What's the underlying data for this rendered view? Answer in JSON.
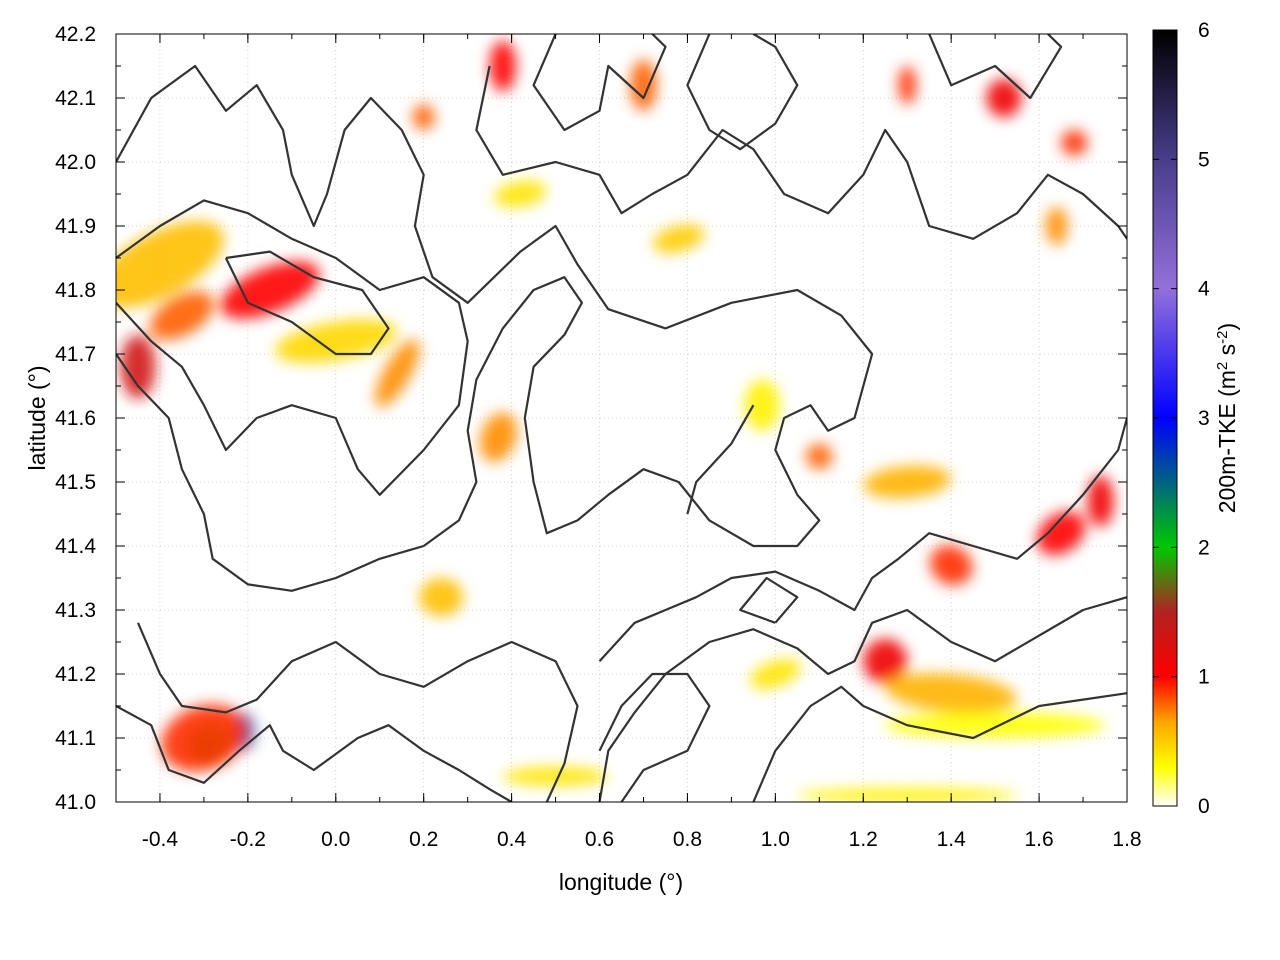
{
  "chart_data": {
    "type": "heatmap",
    "xlabel": "longitude (°)",
    "ylabel": "latitude (°)",
    "xlim": [
      -0.5,
      1.8
    ],
    "ylim": [
      41.0,
      42.2
    ],
    "x_ticks": [
      "-0.4",
      "-0.2",
      "0.0",
      "0.2",
      "0.4",
      "0.6",
      "0.8",
      "1.0",
      "1.2",
      "1.4",
      "1.6",
      "1.8"
    ],
    "x_tick_values": [
      -0.4,
      -0.2,
      0.0,
      0.2,
      0.4,
      0.6,
      0.8,
      1.0,
      1.2,
      1.4,
      1.6,
      1.8
    ],
    "y_ticks": [
      "41.0",
      "41.1",
      "41.2",
      "41.3",
      "41.4",
      "41.5",
      "41.6",
      "41.7",
      "41.8",
      "41.9",
      "42.0",
      "42.1",
      "42.2"
    ],
    "y_tick_values": [
      41.0,
      41.1,
      41.2,
      41.3,
      41.4,
      41.5,
      41.6,
      41.7,
      41.8,
      41.9,
      42.0,
      42.1,
      42.2
    ],
    "grid": true,
    "colorbar": {
      "label_main": "200m-TKE (m",
      "label_sup1": "2",
      "label_mid": " s",
      "label_sup2": "-2",
      "label_end": ")",
      "range": [
        0,
        6
      ],
      "ticks": [
        "0",
        "1",
        "2",
        "3",
        "4",
        "5",
        "6"
      ],
      "tick_values": [
        0,
        1,
        2,
        3,
        4,
        5,
        6
      ],
      "palette": [
        {
          "v": 0.0,
          "color": "#ffffff"
        },
        {
          "v": 0.3,
          "color": "#ffff00"
        },
        {
          "v": 0.65,
          "color": "#ffa500"
        },
        {
          "v": 1.0,
          "color": "#ff0000"
        },
        {
          "v": 1.5,
          "color": "#b22222"
        },
        {
          "v": 2.0,
          "color": "#00c800"
        },
        {
          "v": 3.0,
          "color": "#0000ff"
        },
        {
          "v": 4.0,
          "color": "#9370db"
        },
        {
          "v": 5.0,
          "color": "#483d8b"
        },
        {
          "v": 6.0,
          "color": "#000000"
        }
      ]
    },
    "tke_patches": [
      {
        "x": -0.4,
        "y": 41.84,
        "v": 0.55,
        "rx": 0.16,
        "ry": 0.05,
        "angle": -28
      },
      {
        "x": -0.15,
        "y": 41.8,
        "v": 1.0,
        "rx": 0.12,
        "ry": 0.035,
        "angle": -22
      },
      {
        "x": -0.35,
        "y": 41.76,
        "v": 0.8,
        "rx": 0.08,
        "ry": 0.03,
        "angle": -30
      },
      {
        "x": 0.0,
        "y": 41.72,
        "v": 0.45,
        "rx": 0.14,
        "ry": 0.03,
        "angle": -10
      },
      {
        "x": -0.45,
        "y": 41.68,
        "v": 1.3,
        "rx": 0.04,
        "ry": 0.05,
        "angle": 0
      },
      {
        "x": -0.29,
        "y": 41.09,
        "v": 1.9,
        "rx": 0.05,
        "ry": 0.03,
        "angle": -25
      },
      {
        "x": -0.21,
        "y": 41.11,
        "v": 2.6,
        "rx": 0.025,
        "ry": 0.03,
        "angle": 0
      },
      {
        "x": -0.3,
        "y": 41.1,
        "v": 0.9,
        "rx": 0.1,
        "ry": 0.05,
        "angle": -20
      },
      {
        "x": 0.14,
        "y": 41.67,
        "v": 0.7,
        "rx": 0.03,
        "ry": 0.06,
        "angle": 30
      },
      {
        "x": 0.37,
        "y": 41.57,
        "v": 0.7,
        "rx": 0.04,
        "ry": 0.04,
        "angle": 20
      },
      {
        "x": 0.24,
        "y": 41.32,
        "v": 0.55,
        "rx": 0.05,
        "ry": 0.03,
        "angle": 0
      },
      {
        "x": 0.38,
        "y": 42.15,
        "v": 1.0,
        "rx": 0.03,
        "ry": 0.04,
        "angle": 0
      },
      {
        "x": 0.7,
        "y": 42.12,
        "v": 0.8,
        "rx": 0.03,
        "ry": 0.04,
        "angle": 0
      },
      {
        "x": 0.2,
        "y": 42.07,
        "v": 0.8,
        "rx": 0.025,
        "ry": 0.02,
        "angle": 0
      },
      {
        "x": 0.78,
        "y": 41.88,
        "v": 0.5,
        "rx": 0.06,
        "ry": 0.02,
        "angle": -15
      },
      {
        "x": 1.3,
        "y": 41.5,
        "v": 0.6,
        "rx": 0.1,
        "ry": 0.025,
        "angle": -5
      },
      {
        "x": 1.1,
        "y": 41.54,
        "v": 0.8,
        "rx": 0.03,
        "ry": 0.02,
        "angle": 0
      },
      {
        "x": 1.4,
        "y": 41.37,
        "v": 0.9,
        "rx": 0.05,
        "ry": 0.03,
        "angle": 30
      },
      {
        "x": 1.25,
        "y": 41.22,
        "v": 1.1,
        "rx": 0.05,
        "ry": 0.035,
        "angle": 10
      },
      {
        "x": 1.4,
        "y": 41.17,
        "v": 0.6,
        "rx": 0.15,
        "ry": 0.03,
        "angle": 5
      },
      {
        "x": 1.65,
        "y": 41.42,
        "v": 1.0,
        "rx": 0.06,
        "ry": 0.03,
        "angle": -35
      },
      {
        "x": 1.74,
        "y": 41.47,
        "v": 1.1,
        "rx": 0.03,
        "ry": 0.04,
        "angle": 0
      },
      {
        "x": 1.52,
        "y": 42.1,
        "v": 1.1,
        "rx": 0.04,
        "ry": 0.03,
        "angle": 0
      },
      {
        "x": 1.68,
        "y": 42.03,
        "v": 0.9,
        "rx": 0.03,
        "ry": 0.02,
        "angle": 0
      },
      {
        "x": 1.3,
        "y": 42.12,
        "v": 0.9,
        "rx": 0.02,
        "ry": 0.03,
        "angle": 0
      },
      {
        "x": 1.64,
        "y": 41.9,
        "v": 0.7,
        "rx": 0.025,
        "ry": 0.03,
        "angle": 0
      },
      {
        "x": 0.97,
        "y": 41.62,
        "v": 0.35,
        "rx": 0.04,
        "ry": 0.04,
        "angle": 0
      },
      {
        "x": 0.5,
        "y": 41.04,
        "v": 0.4,
        "rx": 0.12,
        "ry": 0.015,
        "angle": 0
      },
      {
        "x": 1.3,
        "y": 41.01,
        "v": 0.35,
        "rx": 0.25,
        "ry": 0.012,
        "angle": 0
      },
      {
        "x": 1.5,
        "y": 41.12,
        "v": 0.3,
        "rx": 0.25,
        "ry": 0.02,
        "angle": 0
      },
      {
        "x": 0.42,
        "y": 41.95,
        "v": 0.4,
        "rx": 0.06,
        "ry": 0.02,
        "angle": -10
      },
      {
        "x": 1.0,
        "y": 41.2,
        "v": 0.4,
        "rx": 0.06,
        "ry": 0.02,
        "angle": -20
      }
    ],
    "contours": [
      [
        [
          -0.5,
          42.0
        ],
        [
          -0.42,
          42.1
        ],
        [
          -0.32,
          42.15
        ],
        [
          -0.25,
          42.08
        ],
        [
          -0.18,
          42.12
        ],
        [
          -0.12,
          42.05
        ],
        [
          -0.1,
          41.98
        ],
        [
          -0.05,
          41.9
        ],
        [
          -0.02,
          41.95
        ],
        [
          0.02,
          42.05
        ],
        [
          0.08,
          42.1
        ],
        [
          0.15,
          42.05
        ],
        [
          0.2,
          41.98
        ],
        [
          0.18,
          41.9
        ],
        [
          0.22,
          41.82
        ],
        [
          0.3,
          41.78
        ],
        [
          0.42,
          41.86
        ],
        [
          0.5,
          41.9
        ],
        [
          0.55,
          41.84
        ],
        [
          0.62,
          41.77
        ],
        [
          0.75,
          41.74
        ],
        [
          0.9,
          41.78
        ],
        [
          1.05,
          41.8
        ],
        [
          1.15,
          41.76
        ],
        [
          1.22,
          41.7
        ],
        [
          1.18,
          41.6
        ],
        [
          1.12,
          41.58
        ],
        [
          1.08,
          41.62
        ],
        [
          1.02,
          41.6
        ],
        [
          1.0,
          41.55
        ],
        [
          1.05,
          41.48
        ],
        [
          1.1,
          41.44
        ],
        [
          1.05,
          41.4
        ],
        [
          0.95,
          41.4
        ],
        [
          0.85,
          41.44
        ],
        [
          0.78,
          41.5
        ],
        [
          0.7,
          41.52
        ],
        [
          0.62,
          41.48
        ],
        [
          0.55,
          41.44
        ],
        [
          0.48,
          41.42
        ],
        [
          0.45,
          41.5
        ],
        [
          0.43,
          41.6
        ],
        [
          0.45,
          41.68
        ],
        [
          0.52,
          41.73
        ],
        [
          0.56,
          41.78
        ],
        [
          0.52,
          41.82
        ],
        [
          0.45,
          41.8
        ],
        [
          0.38,
          41.74
        ],
        [
          0.32,
          41.66
        ],
        [
          0.3,
          41.58
        ],
        [
          0.32,
          41.5
        ],
        [
          0.28,
          41.44
        ],
        [
          0.2,
          41.4
        ],
        [
          0.1,
          41.38
        ],
        [
          0.0,
          41.35
        ],
        [
          -0.1,
          41.33
        ],
        [
          -0.2,
          41.34
        ],
        [
          -0.28,
          41.38
        ],
        [
          -0.3,
          41.45
        ],
        [
          -0.35,
          41.52
        ],
        [
          -0.38,
          41.6
        ],
        [
          -0.45,
          41.65
        ],
        [
          -0.5,
          41.7
        ]
      ],
      [
        [
          -0.5,
          41.78
        ],
        [
          -0.42,
          41.72
        ],
        [
          -0.35,
          41.68
        ],
        [
          -0.3,
          41.62
        ],
        [
          -0.25,
          41.55
        ],
        [
          -0.18,
          41.6
        ],
        [
          -0.1,
          41.62
        ],
        [
          0.0,
          41.6
        ],
        [
          0.05,
          41.52
        ],
        [
          0.1,
          41.48
        ],
        [
          0.2,
          41.55
        ],
        [
          0.28,
          41.62
        ],
        [
          0.3,
          41.72
        ],
        [
          0.28,
          41.78
        ],
        [
          0.2,
          41.82
        ],
        [
          0.1,
          41.8
        ],
        [
          0.0,
          41.85
        ],
        [
          -0.1,
          41.88
        ],
        [
          -0.2,
          41.92
        ],
        [
          -0.3,
          41.94
        ],
        [
          -0.4,
          41.9
        ],
        [
          -0.5,
          41.85
        ]
      ],
      [
        [
          -0.25,
          41.85
        ],
        [
          -0.2,
          41.78
        ],
        [
          -0.1,
          41.75
        ],
        [
          0.0,
          41.7
        ],
        [
          0.08,
          41.7
        ],
        [
          0.12,
          41.74
        ],
        [
          0.06,
          41.8
        ],
        [
          -0.05,
          41.82
        ],
        [
          -0.15,
          41.86
        ],
        [
          -0.25,
          41.85
        ]
      ],
      [
        [
          0.35,
          42.15
        ],
        [
          0.32,
          42.05
        ],
        [
          0.38,
          41.98
        ],
        [
          0.5,
          42.0
        ],
        [
          0.6,
          41.98
        ],
        [
          0.65,
          41.92
        ],
        [
          0.72,
          41.95
        ],
        [
          0.8,
          41.98
        ],
        [
          0.88,
          42.05
        ],
        [
          0.95,
          42.02
        ],
        [
          1.02,
          41.95
        ],
        [
          1.12,
          41.92
        ],
        [
          1.2,
          41.98
        ],
        [
          1.25,
          42.05
        ],
        [
          1.3,
          42.0
        ],
        [
          1.35,
          41.9
        ],
        [
          1.45,
          41.88
        ],
        [
          1.55,
          41.92
        ],
        [
          1.62,
          41.98
        ],
        [
          1.7,
          41.95
        ],
        [
          1.78,
          41.9
        ],
        [
          1.8,
          41.88
        ]
      ],
      [
        [
          0.5,
          42.2
        ],
        [
          0.45,
          42.12
        ],
        [
          0.52,
          42.05
        ],
        [
          0.6,
          42.08
        ],
        [
          0.62,
          42.15
        ],
        [
          0.7,
          42.1
        ],
        [
          0.75,
          42.18
        ],
        [
          0.72,
          42.2
        ]
      ],
      [
        [
          0.85,
          42.2
        ],
        [
          0.8,
          42.12
        ],
        [
          0.85,
          42.05
        ],
        [
          0.92,
          42.02
        ],
        [
          1.0,
          42.06
        ],
        [
          1.05,
          42.12
        ],
        [
          1.0,
          42.18
        ],
        [
          0.95,
          42.2
        ]
      ],
      [
        [
          1.35,
          42.2
        ],
        [
          1.4,
          42.12
        ],
        [
          1.5,
          42.15
        ],
        [
          1.58,
          42.1
        ],
        [
          1.65,
          42.18
        ],
        [
          1.62,
          42.2
        ]
      ],
      [
        [
          0.6,
          41.22
        ],
        [
          0.68,
          41.28
        ],
        [
          0.75,
          41.3
        ],
        [
          0.82,
          41.32
        ],
        [
          0.9,
          41.35
        ],
        [
          1.0,
          41.36
        ],
        [
          1.1,
          41.33
        ],
        [
          1.18,
          41.3
        ],
        [
          1.22,
          41.35
        ],
        [
          1.28,
          41.38
        ],
        [
          1.35,
          41.42
        ],
        [
          1.45,
          41.4
        ],
        [
          1.55,
          41.38
        ],
        [
          1.62,
          41.42
        ],
        [
          1.7,
          41.48
        ],
        [
          1.78,
          41.55
        ],
        [
          1.8,
          41.6
        ]
      ],
      [
        [
          0.6,
          41.0
        ],
        [
          0.62,
          41.08
        ],
        [
          0.68,
          41.14
        ],
        [
          0.75,
          41.2
        ],
        [
          0.85,
          41.25
        ],
        [
          0.95,
          41.27
        ],
        [
          1.05,
          41.24
        ],
        [
          1.12,
          41.2
        ],
        [
          1.18,
          41.22
        ],
        [
          1.22,
          41.28
        ],
        [
          1.3,
          41.3
        ],
        [
          1.4,
          41.25
        ],
        [
          1.5,
          41.22
        ],
        [
          1.6,
          41.26
        ],
        [
          1.7,
          41.3
        ],
        [
          1.8,
          41.32
        ]
      ],
      [
        [
          0.95,
          41.0
        ],
        [
          1.0,
          41.08
        ],
        [
          1.08,
          41.15
        ],
        [
          1.15,
          41.18
        ],
        [
          1.2,
          41.15
        ],
        [
          1.3,
          41.12
        ],
        [
          1.45,
          41.1
        ],
        [
          1.6,
          41.15
        ],
        [
          1.7,
          41.16
        ],
        [
          1.8,
          41.17
        ]
      ],
      [
        [
          -0.45,
          41.28
        ],
        [
          -0.4,
          41.2
        ],
        [
          -0.35,
          41.15
        ],
        [
          -0.25,
          41.14
        ],
        [
          -0.18,
          41.16
        ],
        [
          -0.1,
          41.22
        ],
        [
          0.0,
          41.25
        ],
        [
          0.1,
          41.2
        ],
        [
          0.2,
          41.18
        ],
        [
          0.3,
          41.22
        ],
        [
          0.4,
          41.25
        ],
        [
          0.5,
          41.22
        ],
        [
          0.55,
          41.15
        ],
        [
          0.52,
          41.06
        ],
        [
          0.48,
          41.0
        ]
      ],
      [
        [
          -0.5,
          41.15
        ],
        [
          -0.42,
          41.12
        ],
        [
          -0.38,
          41.05
        ],
        [
          -0.3,
          41.03
        ],
        [
          -0.22,
          41.08
        ],
        [
          -0.15,
          41.12
        ],
        [
          -0.12,
          41.08
        ],
        [
          -0.05,
          41.05
        ],
        [
          0.05,
          41.1
        ],
        [
          0.12,
          41.12
        ],
        [
          0.2,
          41.08
        ],
        [
          0.28,
          41.05
        ],
        [
          0.35,
          41.02
        ],
        [
          0.4,
          41.0
        ]
      ],
      [
        [
          0.65,
          41.0
        ],
        [
          0.7,
          41.05
        ],
        [
          0.8,
          41.08
        ],
        [
          0.85,
          41.15
        ],
        [
          0.8,
          41.2
        ],
        [
          0.72,
          41.2
        ],
        [
          0.65,
          41.15
        ],
        [
          0.6,
          41.08
        ]
      ],
      [
        [
          1.0,
          41.28
        ],
        [
          1.05,
          41.32
        ],
        [
          0.98,
          41.35
        ],
        [
          0.92,
          41.3
        ],
        [
          1.0,
          41.28
        ]
      ],
      [
        [
          0.95,
          41.62
        ],
        [
          0.9,
          41.56
        ],
        [
          0.82,
          41.5
        ],
        [
          0.8,
          41.45
        ]
      ]
    ]
  }
}
